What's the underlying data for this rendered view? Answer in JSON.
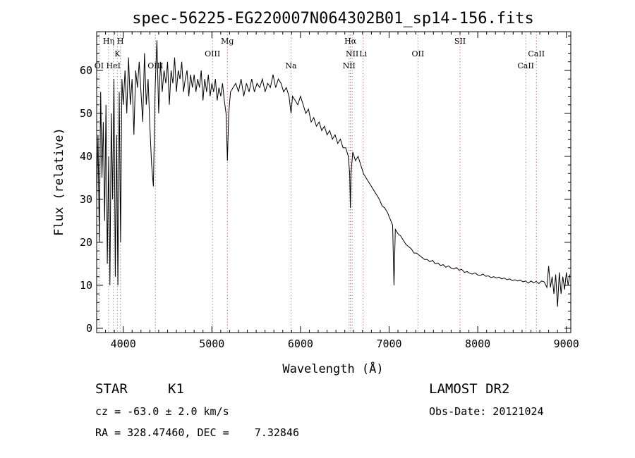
{
  "chart_data": {
    "type": "line",
    "title": "spec-56225-EG220007N064302B01_sp14-156.fits",
    "xlabel": "Wavelength (Å)",
    "ylabel": "Flux (relative)",
    "xlim": [
      3700,
      9050
    ],
    "ylim": [
      -1,
      69
    ],
    "xticks": [
      4000,
      5000,
      6000,
      7000,
      8000,
      9000
    ],
    "yticks": [
      0,
      10,
      20,
      30,
      40,
      50,
      60
    ],
    "grid": false,
    "series": [
      {
        "points": [
          [
            3700,
            30
          ],
          [
            3715,
            45
          ],
          [
            3730,
            20
          ],
          [
            3745,
            55
          ],
          [
            3760,
            35
          ],
          [
            3775,
            48
          ],
          [
            3790,
            25
          ],
          [
            3805,
            52
          ],
          [
            3820,
            15
          ],
          [
            3835,
            40
          ],
          [
            3850,
            10
          ],
          [
            3865,
            50
          ],
          [
            3880,
            30
          ],
          [
            3895,
            58
          ],
          [
            3910,
            12
          ],
          [
            3925,
            45
          ],
          [
            3940,
            10
          ],
          [
            3955,
            55
          ],
          [
            3970,
            20
          ],
          [
            3985,
            58
          ],
          [
            4000,
            52
          ],
          [
            4020,
            60
          ],
          [
            4040,
            50
          ],
          [
            4060,
            63
          ],
          [
            4080,
            52
          ],
          [
            4100,
            58
          ],
          [
            4120,
            45
          ],
          [
            4140,
            60
          ],
          [
            4160,
            56
          ],
          [
            4180,
            62
          ],
          [
            4200,
            55
          ],
          [
            4220,
            48
          ],
          [
            4240,
            64
          ],
          [
            4260,
            52
          ],
          [
            4280,
            58
          ],
          [
            4300,
            47
          ],
          [
            4320,
            38
          ],
          [
            4340,
            33
          ],
          [
            4360,
            56
          ],
          [
            4380,
            67
          ],
          [
            4400,
            50
          ],
          [
            4420,
            62
          ],
          [
            4440,
            55
          ],
          [
            4460,
            60
          ],
          [
            4480,
            57
          ],
          [
            4500,
            62
          ],
          [
            4520,
            52
          ],
          [
            4540,
            60
          ],
          [
            4560,
            57
          ],
          [
            4580,
            63
          ],
          [
            4600,
            55
          ],
          [
            4620,
            60
          ],
          [
            4640,
            58
          ],
          [
            4660,
            62
          ],
          [
            4680,
            55
          ],
          [
            4700,
            58
          ],
          [
            4720,
            60
          ],
          [
            4740,
            54
          ],
          [
            4760,
            59
          ],
          [
            4780,
            56
          ],
          [
            4800,
            59
          ],
          [
            4820,
            55
          ],
          [
            4840,
            58
          ],
          [
            4860,
            56
          ],
          [
            4880,
            60
          ],
          [
            4900,
            53
          ],
          [
            4920,
            58
          ],
          [
            4940,
            55
          ],
          [
            4960,
            59
          ],
          [
            4980,
            54
          ],
          [
            5000,
            57
          ],
          [
            5020,
            55
          ],
          [
            5040,
            58
          ],
          [
            5060,
            53
          ],
          [
            5080,
            56
          ],
          [
            5100,
            54
          ],
          [
            5120,
            57
          ],
          [
            5140,
            53
          ],
          [
            5160,
            50
          ],
          [
            5175,
            39
          ],
          [
            5190,
            50
          ],
          [
            5210,
            55
          ],
          [
            5240,
            56
          ],
          [
            5270,
            57
          ],
          [
            5300,
            55
          ],
          [
            5330,
            58
          ],
          [
            5360,
            54
          ],
          [
            5390,
            57
          ],
          [
            5420,
            55
          ],
          [
            5450,
            58
          ],
          [
            5480,
            55
          ],
          [
            5510,
            57
          ],
          [
            5540,
            56
          ],
          [
            5570,
            58
          ],
          [
            5600,
            55
          ],
          [
            5630,
            57
          ],
          [
            5660,
            56
          ],
          [
            5690,
            59
          ],
          [
            5720,
            56
          ],
          [
            5750,
            58
          ],
          [
            5780,
            57
          ],
          [
            5810,
            55
          ],
          [
            5840,
            56
          ],
          [
            5870,
            54
          ],
          [
            5893,
            50
          ],
          [
            5910,
            54
          ],
          [
            5940,
            53
          ],
          [
            5970,
            52
          ],
          [
            6000,
            54
          ],
          [
            6030,
            52
          ],
          [
            6060,
            50
          ],
          [
            6090,
            51
          ],
          [
            6120,
            48
          ],
          [
            6150,
            49
          ],
          [
            6180,
            47
          ],
          [
            6210,
            48
          ],
          [
            6240,
            46
          ],
          [
            6270,
            47
          ],
          [
            6300,
            45
          ],
          [
            6330,
            46
          ],
          [
            6360,
            44
          ],
          [
            6390,
            45
          ],
          [
            6420,
            43
          ],
          [
            6450,
            44
          ],
          [
            6480,
            42
          ],
          [
            6510,
            42
          ],
          [
            6540,
            40
          ],
          [
            6555,
            36
          ],
          [
            6563,
            28
          ],
          [
            6570,
            36
          ],
          [
            6590,
            41
          ],
          [
            6620,
            39
          ],
          [
            6650,
            40
          ],
          [
            6680,
            38
          ],
          [
            6710,
            36
          ],
          [
            6740,
            35
          ],
          [
            6770,
            34
          ],
          [
            6800,
            33
          ],
          [
            6830,
            32
          ],
          [
            6860,
            31
          ],
          [
            6890,
            30
          ],
          [
            6920,
            28.5
          ],
          [
            6950,
            28
          ],
          [
            6980,
            27
          ],
          [
            7010,
            25.5
          ],
          [
            7040,
            24
          ],
          [
            7055,
            10
          ],
          [
            7070,
            23
          ],
          [
            7100,
            22
          ],
          [
            7130,
            21.5
          ],
          [
            7160,
            20.5
          ],
          [
            7190,
            19.5
          ],
          [
            7220,
            19
          ],
          [
            7250,
            18.5
          ],
          [
            7280,
            17.5
          ],
          [
            7310,
            17.5
          ],
          [
            7340,
            17
          ],
          [
            7370,
            16.5
          ],
          [
            7400,
            16
          ],
          [
            7430,
            16
          ],
          [
            7460,
            15.5
          ],
          [
            7490,
            15.8
          ],
          [
            7520,
            15
          ],
          [
            7550,
            15.2
          ],
          [
            7580,
            14.6
          ],
          [
            7610,
            14.8
          ],
          [
            7640,
            14.2
          ],
          [
            7670,
            14.5
          ],
          [
            7700,
            14
          ],
          [
            7730,
            13.8
          ],
          [
            7760,
            14.1
          ],
          [
            7790,
            13.5
          ],
          [
            7820,
            13.7
          ],
          [
            7850,
            13
          ],
          [
            7880,
            13.2
          ],
          [
            7910,
            12.8
          ],
          [
            7940,
            12.6
          ],
          [
            7970,
            12.9
          ],
          [
            8000,
            12.4
          ],
          [
            8030,
            12.3
          ],
          [
            8060,
            12.6
          ],
          [
            8090,
            12.1
          ],
          [
            8120,
            12.2
          ],
          [
            8150,
            11.8
          ],
          [
            8180,
            12
          ],
          [
            8210,
            11.7
          ],
          [
            8240,
            11.9
          ],
          [
            8270,
            11.5
          ],
          [
            8300,
            11.7
          ],
          [
            8330,
            11.3
          ],
          [
            8360,
            11.5
          ],
          [
            8390,
            11.1
          ],
          [
            8420,
            11.3
          ],
          [
            8450,
            11
          ],
          [
            8480,
            11.2
          ],
          [
            8510,
            10.8
          ],
          [
            8540,
            11
          ],
          [
            8570,
            10.5
          ],
          [
            8600,
            11
          ],
          [
            8630,
            10.6
          ],
          [
            8660,
            10.9
          ],
          [
            8690,
            10.4
          ],
          [
            8720,
            11
          ],
          [
            8750,
            10.8
          ],
          [
            8780,
            9.5
          ],
          [
            8800,
            14.5
          ],
          [
            8820,
            9.5
          ],
          [
            8840,
            12
          ],
          [
            8860,
            8
          ],
          [
            8880,
            12.5
          ],
          [
            8900,
            5
          ],
          [
            8920,
            13
          ],
          [
            8940,
            8
          ],
          [
            8960,
            12
          ],
          [
            8980,
            9
          ],
          [
            9000,
            13
          ],
          [
            9020,
            10
          ],
          [
            9040,
            12.5
          ]
        ]
      }
    ],
    "lines": [
      {
        "label": "OI",
        "x": 3727,
        "color": "#808080",
        "tier": 3
      },
      {
        "label": "Hη",
        "x": 3835,
        "color": "#808080",
        "tier": 1
      },
      {
        "label": "HeI",
        "x": 3889,
        "color": "#808080",
        "tier": 3
      },
      {
        "label": "K",
        "x": 3934,
        "color": "#808080",
        "tier": 2
      },
      {
        "label": "H",
        "x": 3968,
        "color": "#808080",
        "tier": 1
      },
      {
        "label": "OIII",
        "x": 4363,
        "color": "#808080",
        "tier": 3
      },
      {
        "label": "OIII",
        "x": 5007,
        "color": "#808080",
        "tier": 2
      },
      {
        "label": "Mg",
        "x": 5175,
        "color": "#c85050",
        "tier": 1
      },
      {
        "label": "Na",
        "x": 5893,
        "color": "#808080",
        "tier": 3
      },
      {
        "label": "NII",
        "x": 6548,
        "color": "#808080",
        "tier": 3
      },
      {
        "label": "Hα",
        "x": 6563,
        "color": "#c85050",
        "tier": 1
      },
      {
        "label": "NII",
        "x": 6583,
        "color": "#808080",
        "tier": 2
      },
      {
        "label": "Li",
        "x": 6707,
        "color": "#c85050",
        "tier": 2
      },
      {
        "label": "OII",
        "x": 7325,
        "color": "#808080",
        "tier": 2
      },
      {
        "label": "SII",
        "x": 7800,
        "color": "#c85050",
        "tier": 1
      },
      {
        "label": "CaII",
        "x": 8542,
        "color": "#808080",
        "tier": 3
      },
      {
        "label": "CaII",
        "x": 8662,
        "color": "#c85050",
        "tier": 2
      }
    ]
  },
  "info": {
    "object_class": "STAR",
    "subclass": "K1",
    "redshift": "cz = -63.0 ± 2.0 km/s",
    "coords": "RA = 328.47460, DEC =    7.32846",
    "survey": "LAMOST DR2",
    "obs_date": "Obs-Date: 20121024"
  }
}
